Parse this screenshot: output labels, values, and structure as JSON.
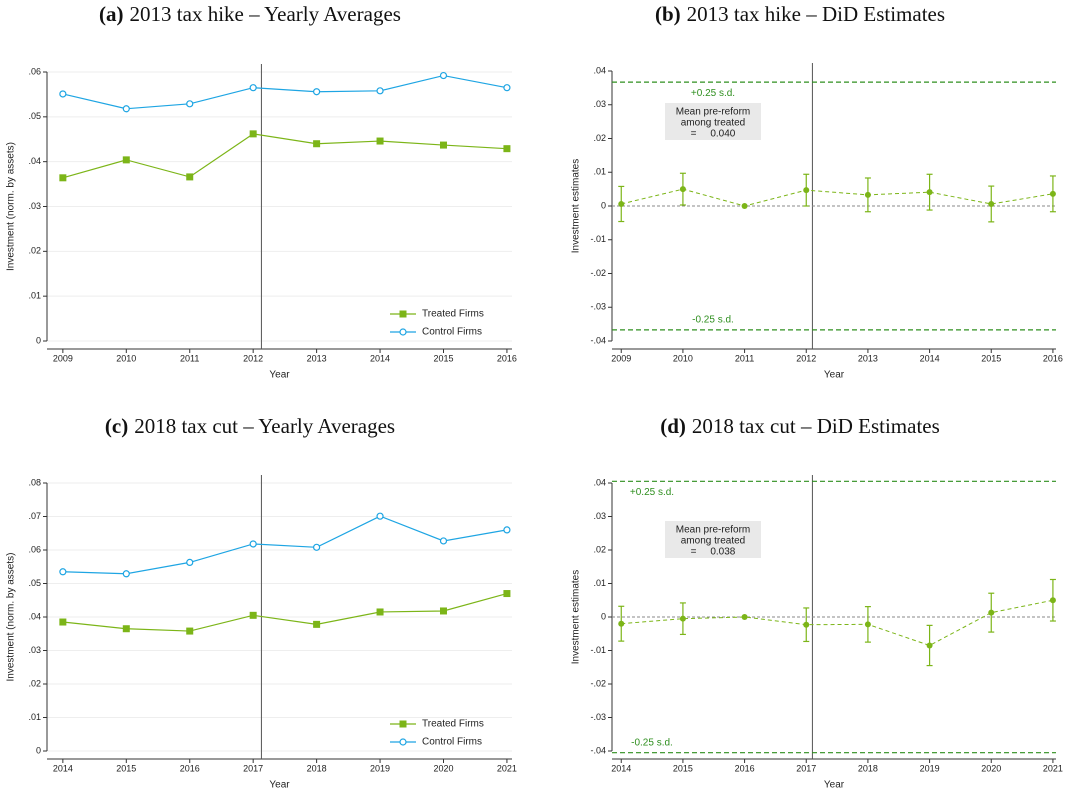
{
  "chart_data": [
    {
      "type": "line",
      "label": "(a)",
      "title": "2013 tax hike – Yearly Averages",
      "x": [
        2009,
        2010,
        2011,
        2012,
        2013,
        2014,
        2015,
        2016
      ],
      "xlim": [
        2008.75,
        2016.08
      ],
      "xticks": [
        2009,
        2010,
        2011,
        2012,
        2013,
        2014,
        2015,
        2016
      ],
      "ylim": [
        0,
        0.06
      ],
      "yticks": [
        0,
        {
          "value": 0.01,
          "label": ".01"
        },
        {
          "value": 0.02,
          "label": ".02"
        },
        {
          "value": 0.03,
          "label": ".03"
        },
        {
          "value": 0.04,
          "label": ".04"
        },
        {
          "value": 0.05,
          "label": ".05"
        },
        {
          "value": 0.06,
          "label": ".06"
        }
      ],
      "xlabel": "Year",
      "ylabel": "Investment (norm. by assets)",
      "grid": true,
      "legend": "lower right",
      "vline": 2012.13,
      "series": [
        {
          "name": "Treated Firms",
          "color": "#7cb518",
          "marker": "square",
          "values": [
            0.0364,
            0.0404,
            0.0366,
            0.0462,
            0.044,
            0.0446,
            0.0437,
            0.0429
          ]
        },
        {
          "name": "Control Firms",
          "color": "#1ea5e3",
          "marker": "circle",
          "values": [
            0.0551,
            0.0518,
            0.0529,
            0.0565,
            0.0556,
            0.0558,
            0.0592,
            0.0565
          ]
        }
      ]
    },
    {
      "type": "errorbar",
      "label": "(b)",
      "title": "2013 tax hike – DiD Estimates",
      "x": [
        2009,
        2010,
        2011,
        2012,
        2013,
        2014,
        2015,
        2016
      ],
      "xlim": [
        2008.85,
        2016.05
      ],
      "xticks": [
        2009,
        2010,
        2011,
        2012,
        2013,
        2014,
        2015,
        2016
      ],
      "ylim": [
        -0.04,
        0.04
      ],
      "yticks": [
        {
          "value": -0.04,
          "label": "-.04"
        },
        {
          "value": -0.03,
          "label": "-.03"
        },
        {
          "value": -0.02,
          "label": "-.02"
        },
        {
          "value": -0.01,
          "label": "-.01"
        },
        0,
        {
          "value": 0.01,
          "label": ".01"
        },
        {
          "value": 0.02,
          "label": ".02"
        },
        {
          "value": 0.03,
          "label": ".03"
        },
        {
          "value": 0.04,
          "label": ".04"
        }
      ],
      "xlabel": "Year",
      "ylabel": "Investment estimates",
      "grid": false,
      "vline": 2012.1,
      "zero_line": true,
      "color": "#7cb518",
      "values": [
        0.0006,
        0.005,
        0,
        0.0047,
        0.0033,
        0.0041,
        0.0006,
        0.0036
      ],
      "errors": [
        0.0052,
        0.0047,
        null,
        0.0047,
        0.005,
        0.0053,
        0.0053,
        0.0053
      ],
      "hlines": [
        {
          "name": "+0.25 s.d.",
          "value": 0.0367
        },
        {
          "name": "-0.25 s.d.",
          "value": -0.0367
        }
      ],
      "hline_color": "#2f8f1f",
      "annotation": [
        "Mean pre-reform",
        "among treated",
        "=     0.040"
      ]
    },
    {
      "type": "line",
      "label": "(c)",
      "title": "2018 tax cut – Yearly Averages",
      "x": [
        2014,
        2015,
        2016,
        2017,
        2018,
        2019,
        2020,
        2021
      ],
      "xlim": [
        2013.75,
        2021.08
      ],
      "xticks": [
        2014,
        2015,
        2016,
        2017,
        2018,
        2019,
        2020,
        2021
      ],
      "ylim": [
        0,
        0.08
      ],
      "yticks": [
        0,
        {
          "value": 0.01,
          "label": ".01"
        },
        {
          "value": 0.02,
          "label": ".02"
        },
        {
          "value": 0.03,
          "label": ".03"
        },
        {
          "value": 0.04,
          "label": ".04"
        },
        {
          "value": 0.05,
          "label": ".05"
        },
        {
          "value": 0.06,
          "label": ".06"
        },
        {
          "value": 0.07,
          "label": ".07"
        },
        {
          "value": 0.08,
          "label": ".08"
        }
      ],
      "xlabel": "Year",
      "ylabel": "Investment (norm. by assets)",
      "grid": true,
      "legend": "lower right",
      "vline": 2017.13,
      "series": [
        {
          "name": "Treated Firms",
          "color": "#7cb518",
          "marker": "square",
          "values": [
            0.0385,
            0.0365,
            0.0358,
            0.0405,
            0.0378,
            0.0415,
            0.0418,
            0.047
          ]
        },
        {
          "name": "Control Firms",
          "color": "#1ea5e3",
          "marker": "circle",
          "values": [
            0.0535,
            0.0529,
            0.0563,
            0.0618,
            0.0608,
            0.0701,
            0.0627,
            0.066
          ]
        }
      ]
    },
    {
      "type": "errorbar",
      "label": "(d)",
      "title": "2018 tax cut – DiD Estimates",
      "x": [
        2014,
        2015,
        2016,
        2017,
        2018,
        2019,
        2020,
        2021
      ],
      "xlim": [
        2013.85,
        2021.05
      ],
      "xticks": [
        2014,
        2015,
        2016,
        2017,
        2018,
        2019,
        2020,
        2021
      ],
      "ylim": [
        -0.04,
        0.04
      ],
      "yticks": [
        {
          "value": -0.04,
          "label": "-.04"
        },
        {
          "value": -0.03,
          "label": "-.03"
        },
        {
          "value": -0.02,
          "label": "-.02"
        },
        {
          "value": -0.01,
          "label": "-.01"
        },
        0,
        {
          "value": 0.01,
          "label": ".01"
        },
        {
          "value": 0.02,
          "label": ".02"
        },
        {
          "value": 0.03,
          "label": ".03"
        },
        {
          "value": 0.04,
          "label": ".04"
        }
      ],
      "xlabel": "Year",
      "ylabel": "Investment estimates",
      "grid": false,
      "vline": 2017.1,
      "zero_line": true,
      "color": "#7cb518",
      "values": [
        -0.002,
        -0.0005,
        0,
        -0.0023,
        -0.0022,
        -0.0085,
        0.0013,
        0.005
      ],
      "errors": [
        0.0052,
        0.0047,
        null,
        0.005,
        0.0053,
        0.006,
        0.0058,
        0.0062
      ],
      "hlines": [
        {
          "name": "+0.25 s.d.",
          "value": 0.0405
        },
        {
          "name": "-0.25 s.d.",
          "value": -0.0405
        }
      ],
      "hline_color": "#2f8f1f",
      "annotation": [
        "Mean pre-reform",
        "among treated",
        "=     0.038"
      ]
    }
  ]
}
